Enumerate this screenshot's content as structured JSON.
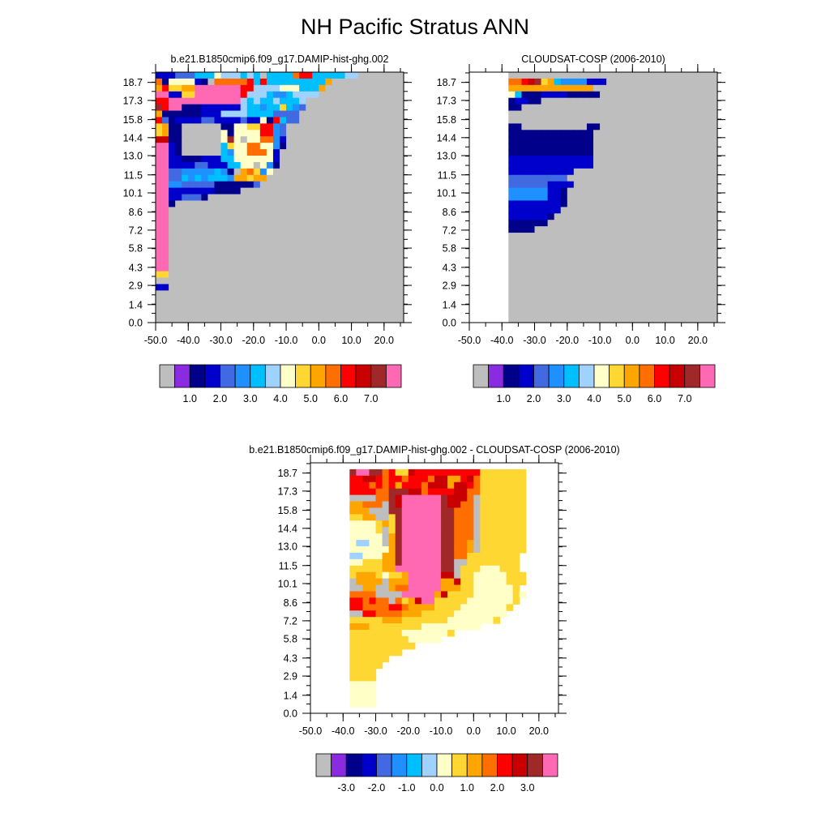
{
  "page": {
    "title": "NH Pacific Stratus ANN"
  },
  "colors": {
    "nodata": "#bebebe",
    "abs_palette": [
      "#bebebe",
      "#8a2be2",
      "#00008b",
      "#0000cd",
      "#4169e1",
      "#1e90ff",
      "#00bfff",
      "#a0d2ff",
      "#ffffc8",
      "#ffd732",
      "#ffa500",
      "#ff6e00",
      "#ff0000",
      "#c80000",
      "#a02828",
      "#ff69b4"
    ],
    "diff_palette": [
      "#bebebe",
      "#8a2be2",
      "#00008b",
      "#0000cd",
      "#4169e1",
      "#1e90ff",
      "#00bfff",
      "#a0d2ff",
      "#ffffc8",
      "#ffd732",
      "#ffa500",
      "#ff6e00",
      "#ff0000",
      "#c80000",
      "#a02828",
      "#ff69b4"
    ]
  },
  "chart_data": [
    {
      "type": "heatmap",
      "title": "b.e21.B1850cmip6.f09_g17.DAMIP-hist-ghg.002",
      "xticks": [
        "-50.0",
        "-40.0",
        "-30.0",
        "-20.0",
        "-10.0",
        "0.0",
        "10.0",
        "20.0"
      ],
      "yticks": [
        "0.0",
        "1.4",
        "2.9",
        "4.3",
        "5.8",
        "7.2",
        "8.6",
        "10.1",
        "11.5",
        "13.0",
        "14.4",
        "15.8",
        "17.3",
        "18.7"
      ],
      "xlim": [
        -50,
        26
      ],
      "ylim": [
        0,
        19.5
      ],
      "colorbar": {
        "labels": [
          "1.0",
          "2.0",
          "3.0",
          "4.0",
          "5.0",
          "6.0",
          "7.0"
        ],
        "levels": 16
      },
      "grid": {
        "x": [
          -50,
          25,
          38
        ],
        "y": [
          0,
          19.5,
          39
        ]
      },
      "rows": [
        "2223335557666565A5555BCC5555566AAAAAAA",
        "B1777721ABBBBBC5C5555555559AAAAAAAAAAA",
        "9C8899FFFFFFFCC66667775559AAAAAAAAAAAA",
        "FF2288FFFFFFFC66654456666AAAAAAAAAAAAA",
        "CCFFFFFFFFFFF6565565556AAAAAAAAAAAAAAA",
        "ECFF1112222226554558543AAAAAAAAAAAAAAA",
        "9111111222666655553333AAAAAAAAAAAAAAAA",
        "C31222233222232271C533AAAAAAAAAAAAAAAA",
        "8911AAAAAA117788CC43AAAAAAAAAAAAAAAAAA",
        "8911AAAAAA717777CC43AAAAAAAAAAAAAAAAAA",
        "DD11AAAAAA7E7A77BB42AAAAAAAAAAAAAAAAAA",
        "FF21AAAAAA5877BB7741AAAAAAAAAAAAAAAAAA",
        "FF21AAAAAA5477BBB72AAAAAAAAAAAAAAAAAAA",
        "FF22111222557777772AAAAAAAAAAAAAAAAAAA",
        "FF2222332225577A741AAAAAAAAAAAAAAAAAAA",
        "FF3344444541A9B847AAAAAAAAAAAAAAAAAAAA",
        "FF335454555499899AAAAAAAAAAAAAAAAAAAAA",
        "FF44333331111113AAAAAAAAAAAAAAAAAAAAAA",
        "FF22222221111AAAAAAAAAAAAAAAAAAAAAAAAA",
        "FF223331AAAAAAAAAAAAAAAAAAAAAAAAAAAAAA",
        "FF1AAAAAAAAAAAAAAAAAAAAAAAAAAAAAAAAAAA",
        "FFAAAAAAAAAAAAAAAAAAAAAAAAAAAAAAAAAAAA",
        "FFAAAAAAAAAAAAAAAAAAAAAAAAAAAAAAAAAAAA",
        "FFAAAAAAAAAAAAAAAAAAAAAAAAAAAAAAAAAAAA",
        "FFAAAAAAAAAAAAAAAAAAAAAAAAAAAAAAAAAAAA",
        "FFAAAAAAAAAAAAAAAAAAAAAAAAAAAAAAAAAAAA",
        "FFAAAAAAAAAAAAAAAAAAAAAAAAAAAAAAAAAAAA",
        "FFAAAAAAAAAAAAAAAAAAAAAAAAAAAAAAAAAAAA",
        "FFAAAAAAAAAAAAAAAAAAAAAAAAAAAAAAAAAAAA",
        "FFAAAAAAAAAAAAAAAAAAAAAAAAAAAAAAAAAAAA",
        "FFAAAAAAAAAAAAAAAAAAAAAAAAAAAAAAAAAAAA",
        "88AAAAAAAAAAAAAAAAAAAAAAAAAAAAAAAAAAAA",
        "AAAAAAAAAAAAAAAAAAAAAAAAAAAAAAAAAAAAAA",
        "22AAAAAAAAAAAAAAAAAAAAAAAAAAAAAAAAAAAA",
        "AAAAAAAAAAAAAAAAAAAAAAAAAAAAAAAAAAAAAA",
        "AAAAAAAAAAAAAAAAAAAAAAAAAAAAAAAAAAAAAA",
        "AAAAAAAAAAAAAAAAAAAAAAAAAAAAAAAAAAAAAA",
        "AAAAAAAAAAAAAAAAAAAAAAAAAAAAAAAAAAAAAA",
        "AAAAAAAAAAAAAAAAAAAAAAAAAAAAAAAAAAAAAA"
      ]
    },
    {
      "type": "heatmap",
      "title": "CLOUDSAT-COSP (2006-2010)",
      "xticks": [
        "-50.0",
        "-40.0",
        "-30.0",
        "-20.0",
        "-10.0",
        "0.0",
        "10.0",
        "20.0"
      ],
      "yticks": [
        "0.0",
        "1.4",
        "2.9",
        "4.3",
        "5.8",
        "7.2",
        "8.6",
        "10.1",
        "11.5",
        "13.0",
        "14.4",
        "15.8",
        "17.3",
        "18.7"
      ],
      "xlim": [
        -50,
        26
      ],
      "ylim": [
        0,
        19.5
      ],
      "colorbar": {
        "labels": [
          "1.0",
          "2.0",
          "3.0",
          "4.0",
          "5.0",
          "6.0",
          "7.0"
        ],
        "levels": 16
      },
      "grid": {
        "x": [
          -50,
          25,
          38
        ],
        "y": [
          0,
          19.5,
          39
        ]
      },
      "rows": [
        "......AAAAAAAAAAAAAAAAAAAAAAAAAAAAAAAA",
        "......BBCDE8954444222AAAAAAAAAAAAAAAAA",
        "......9999999999999AAAAAAAAAAAAAAAAAAA",
        "......75111222211111AAAAAAAAAAAAAAAAAA",
        "......12211AAAAAAAAAAAAAAAAAAAAAAAAAAA",
        "......11AAAAAAAAAAAAAAAAAAAAAAAAAAAAAA",
        "......AAAAAAAAAAAAAAAAAAAAAAAAAAAAAAAA",
        "......AAAAAAAAAAAAAAAAAAAAAAAAAAAAAAAA",
        "......11AAAAAAAAAA11AAAAAAAAAAAAAAAAAA",
        "......1111111111111AAAAAAAAAAAAAAAAAAA",
        "......1111111111111AAAAAAAAAAAAAAAAAAA",
        "......1111111111111AAAAAAAAAAAAAAAAAAA",
        "......1111111111111AAAAAAAAAAAAAAAAAAA",
        "......2222222222222AAAAAAAAAAAAAAAAAAA",
        "......2222222222222AAAAAAAAAAAAAAAAAAA",
        "......2222222222AAAAAAAAAAAAAAAAAAAAAA",
        "......333333333AAAAAAAAAAAAAAAAAAAAAAA",
        "......3333332222AAAAAAAAAAAAAAAAAAAAAA",
        "......444444221AAAAAAAAAAAAAAAAAAAAAAA",
        "......444444221AAAAAAAAAAAAAAAAAAAAAAA",
        "......222222221AAAAAAAAAAAAAAAAAAAAAAA",
        "......22222222AAAAAAAAAAAAAAAAAAAAAAAA",
        "......2222221AAAAAAAAAAAAAAAAAAAAAAAAA",
        "......111111AAAAAAAAAAAAAAAAAAAAAAAAAA",
        "......1111AAAAAAAAAAAAAAAAAAAAAAAAAAAA",
        "......AAAAAAAAAAAAAAAAAAAAAAAAAAAAAAAA",
        "......AAAAAAAAAAAAAAAAAAAAAAAAAAAAAAAA",
        "......AAAAAAAAAAAAAAAAAAAAAAAAAAAAAAAA",
        "......AAAAAAAAAAAAAAAAAAAAAAAAAAAAAAAA",
        "......AAAAAAAAAAAAAAAAAAAAAAAAAAAAAAAA",
        "......AAAAAAAAAAAAAAAAAAAAAAAAAAAAAAAA",
        "......AAAAAAAAAAAAAAAAAAAAAAAAAAAAAAAA",
        "......AAAAAAAAAAAAAAAAAAAAAAAAAAAAAAAA",
        "......AAAAAAAAAAAAAAAAAAAAAAAAAAAAAAAA",
        "......AAAAAAAAAAAAAAAAAAAAAAAAAAAAAAAA",
        "......AAAAAAAAAAAAAAAAAAAAAAAAAAAAAAAA",
        "......AAAAAAAAAAAAAAAAAAAAAAAAAAAAAAAA",
        "......AAAAAAAAAAAAAAAAAAAAAAAAAAAAAAAA",
        "......AAAAAAAAAAAAAAAAAAAAAAAAAAAAAAAA"
      ]
    },
    {
      "type": "heatmap",
      "title": "b.e21.B1850cmip6.f09_g17.DAMIP-hist-ghg.002 - CLOUDSAT-COSP (2006-2010)",
      "xticks": [
        "-50.0",
        "-40.0",
        "-30.0",
        "-20.0",
        "-10.0",
        "0.0",
        "10.0",
        "20.0"
      ],
      "yticks": [
        "0.0",
        "1.4",
        "2.9",
        "4.3",
        "5.8",
        "7.2",
        "8.6",
        "10.1",
        "11.5",
        "13.0",
        "14.4",
        "15.8",
        "17.3",
        "18.7"
      ],
      "xlim": [
        -50,
        26
      ],
      "ylim": [
        0,
        19.5
      ],
      "colorbar": {
        "labels": [
          "-3.0",
          "-2.0",
          "-1.0",
          "0.0",
          "1.0",
          "2.0",
          "3.0"
        ],
        "levels": 16
      },
      "grid": {
        "x": [
          -50,
          25,
          38
        ],
        "y": [
          0,
          19.5,
          39
        ]
      },
      "rows": [
        "......................................",
        "......EFFEEBC88DCCCCCCCCCC8888888.....",
        "......CCDDCBCCBCCCBDD99CDB8888888.....",
        "......CCCBCBC9CCCBDDD9DDCB8888888.....",
        "......CCCCBBEEEDDBCCCCDDBB8888888.....",
        "......AAAABBEDFFFFFFEDDDBA8888888.....",
        "......99BBBAEDFFFFFFEDDBBA8888888.....",
        "......999AAAEEFFFFFFEEBBBA8888888.....",
        "......8899AA8EFFFFFFEEBBBA8888888.....",
        "......7777898EFFFFFFEEBBBA8888888.....",
        "......77778A8EFFFFFFEEBBBA8888888.....",
        "......77777A9EFFFFFFEEBBBA8888888.....",
        "......76677A9EFFFFFFEEBB9A8888888.....",
        "......7777779EFFFFFFEEBB9A8888888.....",
        "......6677799EFFFFFFEEBB88888888......",
        "......7788899EFFFFFFEEAA88888888......",
        "......8888899FFFFFFFEEA888777888......",
        "......899987889FFFFFDDA8877777888.....",
        "......A9999A999FFFFF99D8877777888.....",
        "......AA99AA9BBFFFFF999887777778......",
        "......BBBBAAAAFFFFF9D888877777787.....",
        "......CCBCBBAB89DFF8888877777778......",
        "......CCBBBBCCB9999888877777778.......",
        "......AACCBBBB9998888877777777........",
        "......88888999888888877777778.........",
        "......99988888888777777777............",
        "......8888888877777778................",
        "......88888888877777..................",
        "......8888888888......................",
        "......88888888........................",
        "......888888..........................",
        "......88888...........................",
        "......8888............................",
        "......8888............................",
        "......7777............................",
        "......7777............................",
        "......7777............................",
        "......7777............................",
        "......................................"
      ]
    }
  ]
}
